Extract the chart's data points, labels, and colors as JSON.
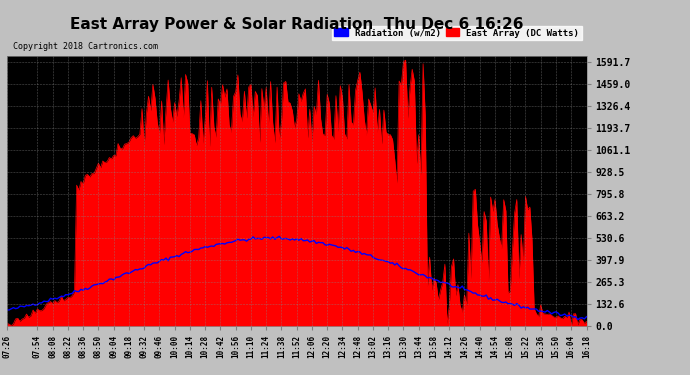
{
  "title": "East Array Power & Solar Radiation  Thu Dec 6 16:26",
  "copyright": "Copyright 2018 Cartronics.com",
  "legend_labels": [
    "Radiation (w/m2)",
    "East Array (DC Watts)"
  ],
  "legend_colors": [
    "#0000ff",
    "#ff0000"
  ],
  "yticks": [
    0.0,
    132.6,
    265.3,
    397.9,
    530.6,
    663.2,
    795.8,
    928.5,
    1061.1,
    1193.7,
    1326.4,
    1459.0,
    1591.7
  ],
  "ymax": 1591.7,
  "ymin": 0.0,
  "bg_color": "#000000",
  "plot_bg_color": "#000000",
  "grid_color": "#555555",
  "title_color": "#000000",
  "outer_bg": "#c0c0c0"
}
